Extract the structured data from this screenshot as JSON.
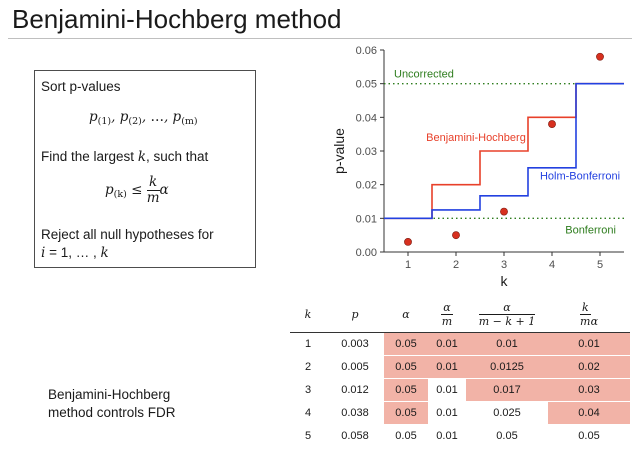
{
  "title": "Benjamini-Hochberg method",
  "algorithm": {
    "step1": "Sort p-values",
    "sorted_math": {
      "p": "p",
      "s1": "(1)",
      "s2": "(2)",
      "dots": "…",
      "sm": "(m)",
      "comma": ","
    },
    "step2_prefix": "Find the largest ",
    "step2_var": "k",
    "step2_suffix": ", such that",
    "cond": {
      "p": "p",
      "sk": "(k)",
      "le": "≤",
      "num": "k",
      "den": "m",
      "alpha": "α"
    },
    "step3_line1": "Reject all null hypotheses for",
    "step3_line2_var": "i",
    "step3_line2_rest": " = 1, … , ",
    "step3_line2_k": "k"
  },
  "note": {
    "line1": "Benjamini-Hochberg",
    "line2": "method controls FDR"
  },
  "chart_data": {
    "type": "line",
    "xlabel": "k",
    "ylabel": "p-value",
    "xlim": [
      0.5,
      5.5
    ],
    "ylim": [
      0,
      0.06
    ],
    "xticks": [
      "1",
      "2",
      "3",
      "4",
      "5"
    ],
    "yticks": [
      "0.00",
      "0.01",
      "0.02",
      "0.03",
      "0.04",
      "0.05",
      "0.06"
    ],
    "grid": false,
    "points": {
      "x": [
        1,
        2,
        3,
        4,
        5
      ],
      "y": [
        0.003,
        0.005,
        0.012,
        0.038,
        0.058
      ],
      "color": "#d7301f"
    },
    "series": [
      {
        "name": "Benjamini-Hochberg",
        "color": "#e8402a",
        "x": [
          1,
          2,
          3,
          4,
          5
        ],
        "y": [
          0.01,
          0.02,
          0.03,
          0.04,
          0.05
        ]
      },
      {
        "name": "Holm-Bonferroni",
        "color": "#2341e0",
        "x": [
          1,
          2,
          3,
          4,
          5
        ],
        "y": [
          0.01,
          0.0125,
          0.0167,
          0.025,
          0.05
        ]
      }
    ],
    "reference_lines": [
      {
        "name": "Uncorrected",
        "y": 0.05,
        "color": "#2e7d1e"
      },
      {
        "name": "Bonferroni",
        "y": 0.01,
        "color": "#2e7d1e"
      }
    ]
  },
  "table": {
    "headers": {
      "k": "k",
      "p": "p",
      "alpha": "α",
      "am_num": "α",
      "am_den": "m",
      "holm_num": "α",
      "holm_den": "m − k + 1",
      "bh_num": "k",
      "bh_den": "m",
      "bh_alpha": "α"
    },
    "highlight_color": "#f2b3a7",
    "rows": [
      {
        "k": "1",
        "p": "0.003",
        "alpha": "0.05",
        "am": "0.01",
        "holm": "0.01",
        "bh": "0.01",
        "hl": [
          true,
          true,
          true,
          true
        ]
      },
      {
        "k": "2",
        "p": "0.005",
        "alpha": "0.05",
        "am": "0.01",
        "holm": "0.0125",
        "bh": "0.02",
        "hl": [
          true,
          true,
          true,
          true
        ]
      },
      {
        "k": "3",
        "p": "0.012",
        "alpha": "0.05",
        "am": "0.01",
        "holm": "0.017",
        "bh": "0.03",
        "hl": [
          true,
          false,
          true,
          true
        ]
      },
      {
        "k": "4",
        "p": "0.038",
        "alpha": "0.05",
        "am": "0.01",
        "holm": "0.025",
        "bh": "0.04",
        "hl": [
          true,
          false,
          false,
          true
        ]
      },
      {
        "k": "5",
        "p": "0.058",
        "alpha": "0.05",
        "am": "0.01",
        "holm": "0.05",
        "bh": "0.05",
        "hl": [
          false,
          false,
          false,
          false
        ]
      }
    ]
  }
}
